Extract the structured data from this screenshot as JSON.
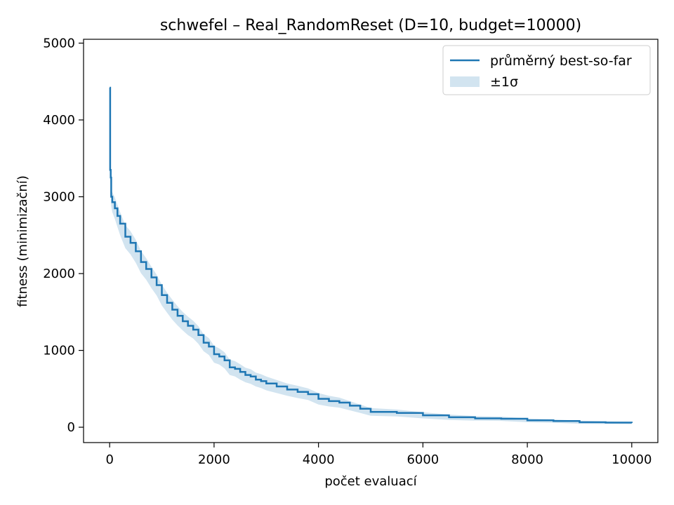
{
  "chart_data": {
    "type": "line",
    "title": "schwefel – Real_RandomReset (D=10, budget=10000)",
    "xlabel": "počet evaluací",
    "ylabel": "fitness (minimizační)",
    "xlim": [
      -500,
      10500
    ],
    "ylim": [
      -200,
      5050
    ],
    "xticks": [
      0,
      2000,
      4000,
      6000,
      8000,
      10000
    ],
    "yticks": [
      0,
      1000,
      2000,
      3000,
      4000,
      5000
    ],
    "grid": false,
    "legend_position": "top-right",
    "colors": {
      "line": "#1f77b4",
      "band": "#1f77b4"
    },
    "series": [
      {
        "name": "průměrný best-so-far",
        "x": [
          0,
          10,
          20,
          30,
          50,
          100,
          150,
          200,
          300,
          400,
          500,
          600,
          700,
          800,
          900,
          1000,
          1100,
          1200,
          1300,
          1400,
          1500,
          1600,
          1700,
          1800,
          1900,
          2000,
          2100,
          2200,
          2300,
          2400,
          2500,
          2600,
          2700,
          2800,
          2900,
          3000,
          3200,
          3400,
          3600,
          3800,
          4000,
          4200,
          4400,
          4600,
          4800,
          5000,
          5500,
          6000,
          6500,
          7000,
          7500,
          8000,
          8500,
          9000,
          9500,
          10000
        ],
        "y": [
          4420,
          3350,
          3250,
          3000,
          2930,
          2850,
          2750,
          2650,
          2480,
          2400,
          2290,
          2150,
          2060,
          1950,
          1850,
          1720,
          1620,
          1530,
          1450,
          1380,
          1320,
          1270,
          1200,
          1100,
          1050,
          950,
          920,
          870,
          780,
          760,
          720,
          680,
          660,
          620,
          600,
          570,
          530,
          490,
          460,
          430,
          370,
          340,
          320,
          280,
          240,
          200,
          185,
          155,
          130,
          115,
          110,
          90,
          80,
          65,
          60,
          55
        ],
        "sigma": [
          0,
          100,
          110,
          120,
          130,
          140,
          145,
          150,
          150,
          150,
          150,
          145,
          140,
          140,
          135,
          135,
          130,
          130,
          125,
          120,
          120,
          115,
          115,
          110,
          110,
          110,
          105,
          105,
          100,
          100,
          100,
          95,
          95,
          90,
          90,
          90,
          85,
          80,
          80,
          75,
          75,
          70,
          65,
          60,
          55,
          50,
          45,
          40,
          35,
          30,
          28,
          25,
          22,
          20,
          18,
          15
        ]
      }
    ],
    "legend": [
      {
        "label": "průměrný best-so-far",
        "kind": "line"
      },
      {
        "label": "±1σ",
        "kind": "band"
      }
    ]
  }
}
